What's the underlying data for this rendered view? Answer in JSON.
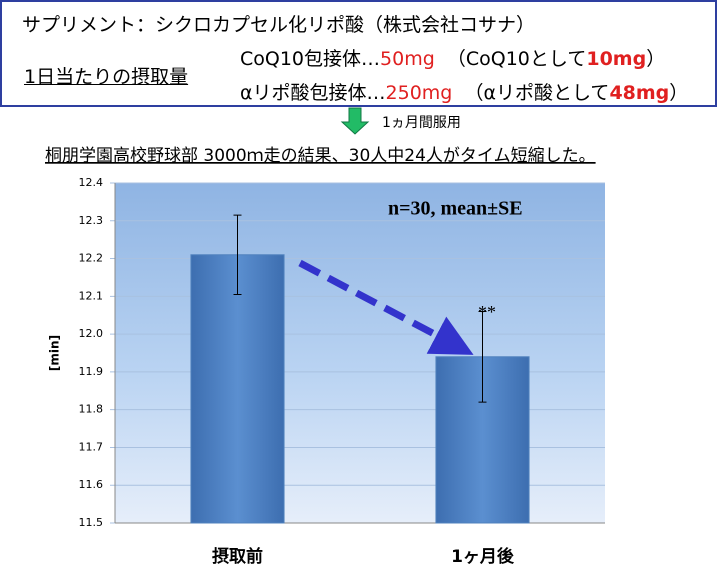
{
  "header": {
    "line1": "サプリメント：シクロカプセル化リポ酸（株式会社コサナ）",
    "dose_label": "1日当たりの摂取量",
    "coq10": {
      "name": "CoQ10包接体…",
      "amount": "50mg",
      "as_text": "（CoQ10として",
      "as_amount": "10mg",
      "close": "）"
    },
    "alpha": {
      "name": "αリポ酸包接体…",
      "amount": "250mg",
      "as_text": "（αリポ酸として",
      "as_amount": "48mg",
      "close": "）"
    },
    "period": "1ヵ月間服用",
    "result": "桐朋学園高校野球部  3000ｍ走の結果、30人中24人がタイム短縮した。"
  },
  "chart_data": {
    "type": "bar",
    "categories": [
      "摂取前",
      "1ヶ月後"
    ],
    "values": [
      12.21,
      11.94
    ],
    "errors": [
      0.105,
      0.12
    ],
    "color": "#4f81bd",
    "ylabel": "[min]",
    "ylim": [
      11.5,
      12.4
    ],
    "yticks": [
      11.5,
      11.6,
      11.7,
      11.8,
      11.9,
      {
        "value": 12,
        "label": "12.0"
      },
      12.1,
      12.2,
      12.3,
      12.4
    ],
    "grid": true,
    "annotation": "n=30, mean±SE",
    "significance": "**"
  }
}
